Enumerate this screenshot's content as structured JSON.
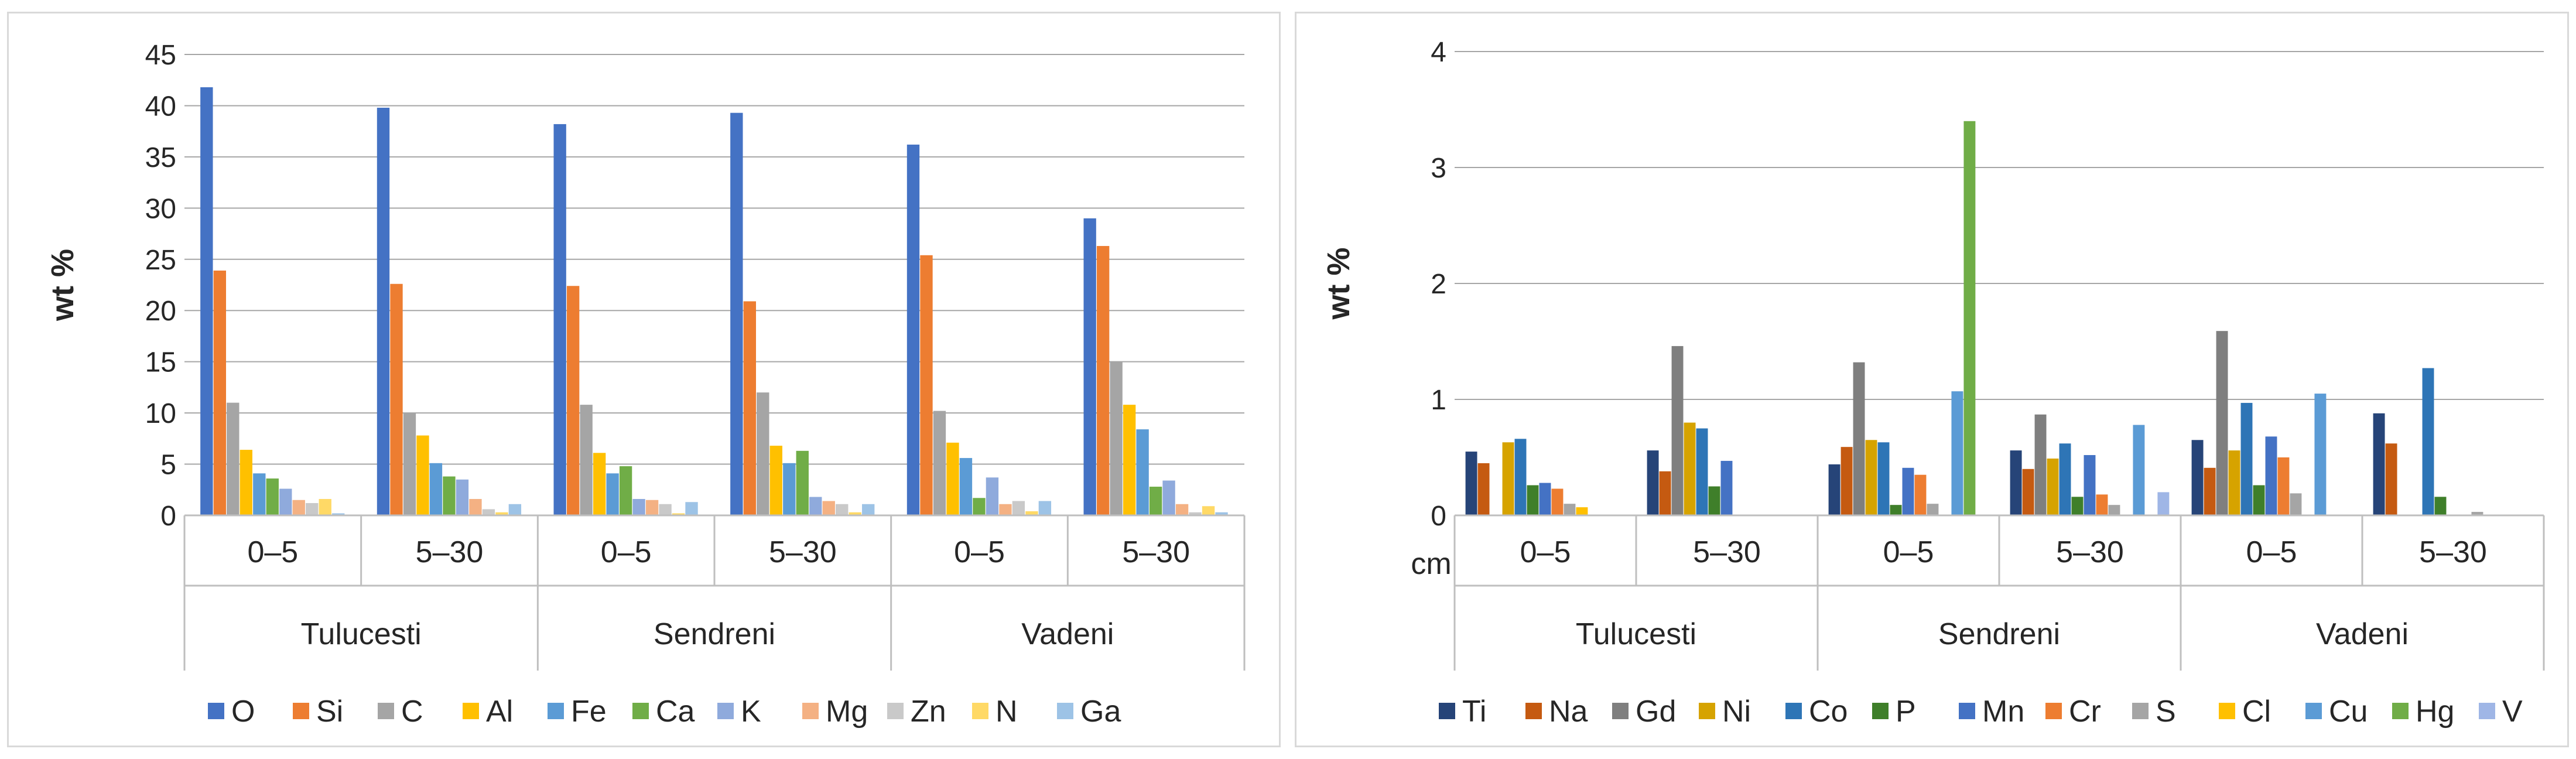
{
  "chart_data": [
    {
      "type": "bar",
      "title": "",
      "xlabel": "",
      "ylabel": "wt %",
      "ylim": [
        0,
        45
      ],
      "yticks": [
        0,
        5,
        10,
        15,
        20,
        25,
        30,
        35,
        40,
        45
      ],
      "grid": true,
      "legend_position": "bottom",
      "categories": [
        "0–5",
        "5–30",
        "0–5",
        "5–30",
        "0–5",
        "5–30"
      ],
      "groups": [
        "Tulucesti",
        "Sendreni",
        "Vadeni"
      ],
      "series": [
        {
          "name": "O",
          "color": "#4472C4",
          "values": [
            41.8,
            39.8,
            38.2,
            39.3,
            36.2,
            29.0
          ]
        },
        {
          "name": "Si",
          "color": "#ED7D31",
          "values": [
            23.9,
            22.6,
            22.4,
            20.9,
            25.4,
            26.3
          ]
        },
        {
          "name": "C",
          "color": "#A5A5A5",
          "values": [
            11.0,
            10.0,
            10.8,
            12.0,
            10.2,
            15.0
          ]
        },
        {
          "name": "Al",
          "color": "#FFC000",
          "values": [
            6.4,
            7.8,
            6.1,
            6.8,
            7.1,
            10.8
          ]
        },
        {
          "name": "Fe",
          "color": "#5B9BD5",
          "values": [
            4.1,
            5.1,
            4.1,
            5.1,
            5.6,
            8.4
          ]
        },
        {
          "name": "Ca",
          "color": "#70AD47",
          "values": [
            3.6,
            3.8,
            4.8,
            6.3,
            1.7,
            2.8
          ]
        },
        {
          "name": "K",
          "color": "#8FAADC",
          "values": [
            2.6,
            3.5,
            1.6,
            1.8,
            3.7,
            3.4
          ]
        },
        {
          "name": "Mg",
          "color": "#F4B183",
          "values": [
            1.5,
            1.6,
            1.5,
            1.4,
            1.1,
            1.1
          ]
        },
        {
          "name": "Zn",
          "color": "#C9C9C9",
          "values": [
            1.2,
            0.6,
            1.1,
            1.1,
            1.4,
            0.3
          ]
        },
        {
          "name": "N",
          "color": "#FFD966",
          "values": [
            1.6,
            0.3,
            0.2,
            0.3,
            0.4,
            0.9
          ]
        },
        {
          "name": "Ga",
          "color": "#9DC3E6",
          "values": [
            0.2,
            1.1,
            1.3,
            1.1,
            1.4,
            0.3
          ]
        }
      ]
    },
    {
      "type": "bar",
      "title": "",
      "xlabel": "cm",
      "ylabel": "wt %",
      "ylim": [
        0,
        4
      ],
      "yticks": [
        0,
        1,
        2,
        3,
        4
      ],
      "grid": true,
      "legend_position": "bottom",
      "categories": [
        "0–5",
        "5–30",
        "0–5",
        "5–30",
        "0–5",
        "5–30"
      ],
      "groups": [
        "Tulucesti",
        "Sendreni",
        "Vadeni"
      ],
      "series": [
        {
          "name": "Ti",
          "color": "#264478",
          "values": [
            0.55,
            0.56,
            0.44,
            0.56,
            0.65,
            0.88
          ]
        },
        {
          "name": "Na",
          "color": "#C55A11",
          "values": [
            0.45,
            0.38,
            0.59,
            0.4,
            0.41,
            0.62
          ]
        },
        {
          "name": "Gd",
          "color": "#7F7F7F",
          "values": [
            0.0,
            1.46,
            1.32,
            0.87,
            1.59,
            0.0
          ]
        },
        {
          "name": "Ni",
          "color": "#D6A300",
          "values": [
            0.63,
            0.8,
            0.65,
            0.49,
            0.56,
            0.0
          ]
        },
        {
          "name": "Co",
          "color": "#2E75B6",
          "values": [
            0.66,
            0.75,
            0.63,
            0.62,
            0.97,
            1.27
          ]
        },
        {
          "name": "P",
          "color": "#3F7F2A",
          "values": [
            0.26,
            0.25,
            0.09,
            0.16,
            0.26,
            0.16
          ]
        },
        {
          "name": "Mn",
          "color": "#4472C4",
          "values": [
            0.28,
            0.47,
            0.41,
            0.52,
            0.68,
            0.0
          ]
        },
        {
          "name": "Cr",
          "color": "#ED7D31",
          "values": [
            0.23,
            0.0,
            0.35,
            0.18,
            0.5,
            0.0
          ]
        },
        {
          "name": "S",
          "color": "#A5A5A5",
          "values": [
            0.1,
            0.0,
            0.1,
            0.09,
            0.19,
            0.03
          ]
        },
        {
          "name": "Cl",
          "color": "#FFC000",
          "values": [
            0.07,
            0.0,
            0.0,
            0.0,
            0.0,
            0.0
          ]
        },
        {
          "name": "Cu",
          "color": "#5B9BD5",
          "values": [
            0.0,
            0.0,
            1.07,
            0.78,
            1.05,
            0.0
          ]
        },
        {
          "name": "Hg",
          "color": "#70AD47",
          "values": [
            0.0,
            0.0,
            3.4,
            0.0,
            0.0,
            0.0
          ]
        },
        {
          "name": "V",
          "color": "#9FB6E6",
          "values": [
            0.0,
            0.0,
            0.0,
            0.2,
            0.0,
            0.0
          ]
        }
      ]
    }
  ]
}
